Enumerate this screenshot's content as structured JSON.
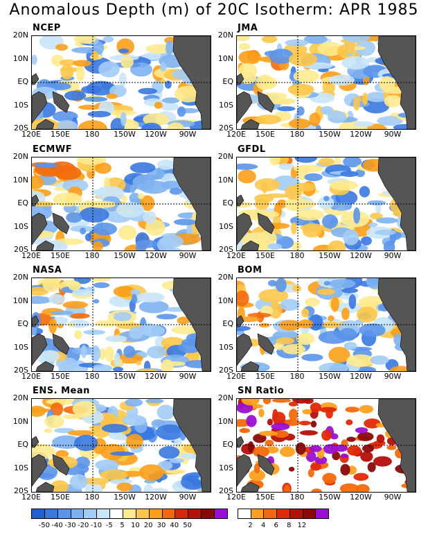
{
  "title": "Anomalous Depth (m) of 20C Isotherm: APR 1985",
  "panels": [
    {
      "id": "ncep",
      "title": "NCEP"
    },
    {
      "id": "jma",
      "title": "JMA"
    },
    {
      "id": "ecmwf",
      "title": "ECMWF"
    },
    {
      "id": "gfdl",
      "title": "GFDL"
    },
    {
      "id": "nasa",
      "title": "NASA"
    },
    {
      "id": "bom",
      "title": "BOM"
    },
    {
      "id": "ens",
      "title": "ENS. Mean"
    },
    {
      "id": "sn",
      "title": "SN Ratio"
    }
  ],
  "lat_labels": [
    "20N",
    "10N",
    "EQ",
    "10S",
    "20S"
  ],
  "lon_labels": [
    "120E",
    "150E",
    "180",
    "150W",
    "120W",
    "90W"
  ],
  "anomaly_colorbar": {
    "colors": [
      "#1f5fd0",
      "#3a78e0",
      "#5b95ea",
      "#7eb1f0",
      "#a3ccf5",
      "#c9e6f9",
      "#ffffff",
      "#fdea8e",
      "#fcc64a",
      "#fb9e1a",
      "#f36a0c",
      "#d8260a",
      "#b5100a",
      "#8a0808",
      "#9a10d0"
    ],
    "labels": [
      "-50",
      "-40",
      "-30",
      "-20",
      "-10",
      "-5",
      "5",
      "10",
      "20",
      "30",
      "40",
      "50"
    ]
  },
  "sn_colorbar": {
    "colors": [
      "#ffffff",
      "#fba020",
      "#f36a0c",
      "#e02a0a",
      "#b5100a",
      "#8a0808",
      "#9a10d0"
    ],
    "labels": [
      "2",
      "4",
      "6",
      "8",
      "12"
    ]
  }
}
